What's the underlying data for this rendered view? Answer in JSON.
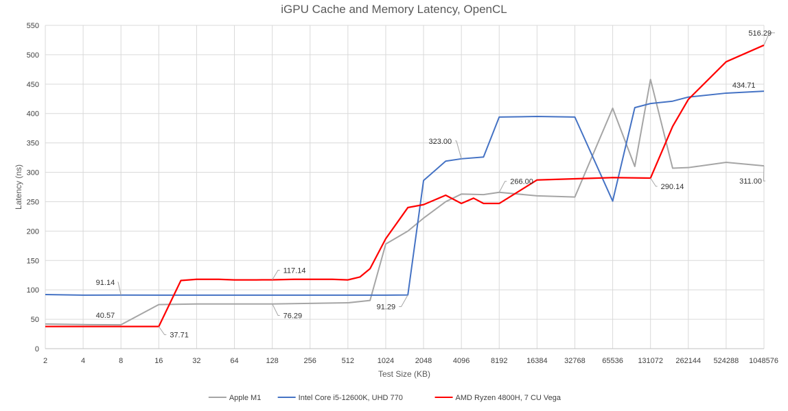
{
  "chart_data": {
    "type": "line",
    "title": "iGPU Cache and Memory Latency, OpenCL",
    "xlabel": "Test Size (KB)",
    "ylabel": "Latency (ns)",
    "ylim": [
      0,
      550
    ],
    "yticks": [
      0,
      50,
      100,
      150,
      200,
      250,
      300,
      350,
      400,
      450,
      500,
      550
    ],
    "x_scale": "log2",
    "xticks": [
      2,
      4,
      8,
      16,
      32,
      64,
      128,
      256,
      512,
      1024,
      2048,
      4096,
      8192,
      16384,
      32768,
      65536,
      131072,
      262144,
      524288,
      1048576
    ],
    "grid": true,
    "legend_position": "bottom",
    "series": [
      {
        "name": "Apple M1",
        "color": "#a5a5a5",
        "points": [
          [
            2,
            42
          ],
          [
            4,
            41
          ],
          [
            8,
            40.57
          ],
          [
            16,
            75
          ],
          [
            32,
            76
          ],
          [
            64,
            76
          ],
          [
            128,
            76
          ],
          [
            256,
            77
          ],
          [
            512,
            78
          ],
          [
            768,
            82
          ],
          [
            1024,
            178
          ],
          [
            1536,
            200
          ],
          [
            2048,
            222
          ],
          [
            3072,
            250
          ],
          [
            4096,
            263
          ],
          [
            6144,
            262
          ],
          [
            8192,
            266
          ],
          [
            16384,
            260
          ],
          [
            32768,
            258
          ],
          [
            65536,
            409
          ],
          [
            98304,
            310
          ],
          [
            131072,
            458
          ],
          [
            196608,
            307
          ],
          [
            262144,
            308
          ],
          [
            524288,
            317
          ],
          [
            1048576,
            311
          ]
        ]
      },
      {
        "name": "Intel Core i5-12600K, UHD 770",
        "color": "#4472c4",
        "points": [
          [
            2,
            92
          ],
          [
            4,
            91
          ],
          [
            8,
            91.14
          ],
          [
            16,
            91
          ],
          [
            32,
            91
          ],
          [
            64,
            91
          ],
          [
            128,
            91
          ],
          [
            256,
            91
          ],
          [
            512,
            91
          ],
          [
            1024,
            91
          ],
          [
            1536,
            91.29
          ],
          [
            2048,
            286
          ],
          [
            3072,
            319
          ],
          [
            4096,
            323
          ],
          [
            6144,
            326
          ],
          [
            8192,
            394
          ],
          [
            16384,
            395
          ],
          [
            32768,
            394
          ],
          [
            65536,
            251
          ],
          [
            98304,
            410
          ],
          [
            131072,
            417
          ],
          [
            196608,
            421
          ],
          [
            262144,
            428
          ],
          [
            524288,
            434.71
          ],
          [
            1048576,
            438
          ]
        ]
      },
      {
        "name": "AMD Ryzen 4800H, 7 CU Vega",
        "color": "#ff0000",
        "points": [
          [
            2,
            37.71
          ],
          [
            4,
            37.71
          ],
          [
            8,
            37.71
          ],
          [
            16,
            37.71
          ],
          [
            24,
            116
          ],
          [
            32,
            118
          ],
          [
            48,
            118
          ],
          [
            64,
            117
          ],
          [
            96,
            117
          ],
          [
            128,
            117.14
          ],
          [
            192,
            118
          ],
          [
            256,
            118
          ],
          [
            384,
            118
          ],
          [
            512,
            117
          ],
          [
            640,
            122
          ],
          [
            768,
            136
          ],
          [
            1024,
            187
          ],
          [
            1536,
            240
          ],
          [
            2048,
            245
          ],
          [
            3072,
            261
          ],
          [
            4096,
            247
          ],
          [
            5120,
            256
          ],
          [
            6144,
            247
          ],
          [
            8192,
            247
          ],
          [
            16384,
            287
          ],
          [
            32768,
            289
          ],
          [
            65536,
            291
          ],
          [
            131072,
            290.14
          ],
          [
            196608,
            378
          ],
          [
            262144,
            424
          ],
          [
            524288,
            488
          ],
          [
            1048576,
            516.29
          ]
        ]
      }
    ],
    "annotations": [
      {
        "text": "91.14",
        "x": 8,
        "y": 91.14,
        "series": "Intel Core i5-12600K, UHD 770"
      },
      {
        "text": "40.57",
        "x": 8,
        "y": 40.57,
        "series": "Apple M1"
      },
      {
        "text": "37.71",
        "x": 16,
        "y": 37.71,
        "series": "AMD Ryzen 4800H, 7 CU Vega"
      },
      {
        "text": "117.14",
        "x": 128,
        "y": 117.14,
        "series": "AMD Ryzen 4800H, 7 CU Vega"
      },
      {
        "text": "76.29",
        "x": 128,
        "y": 76.29,
        "series": "Apple M1"
      },
      {
        "text": "91.29",
        "x": 1536,
        "y": 91.29,
        "series": "Intel Core i5-12600K, UHD 770"
      },
      {
        "text": "323.00",
        "x": 4096,
        "y": 323,
        "series": "Intel Core i5-12600K, UHD 770"
      },
      {
        "text": "266.00",
        "x": 8192,
        "y": 266,
        "series": "Apple M1"
      },
      {
        "text": "290.14",
        "x": 131072,
        "y": 290.14,
        "series": "AMD Ryzen 4800H, 7 CU Vega"
      },
      {
        "text": "434.71",
        "x": 524288,
        "y": 434.71,
        "series": "Intel Core i5-12600K, UHD 770"
      },
      {
        "text": "516.29",
        "x": 1048576,
        "y": 516.29,
        "series": "AMD Ryzen 4800H, 7 CU Vega"
      },
      {
        "text": "311.00",
        "x": 1048576,
        "y": 311,
        "series": "Apple M1"
      }
    ]
  }
}
